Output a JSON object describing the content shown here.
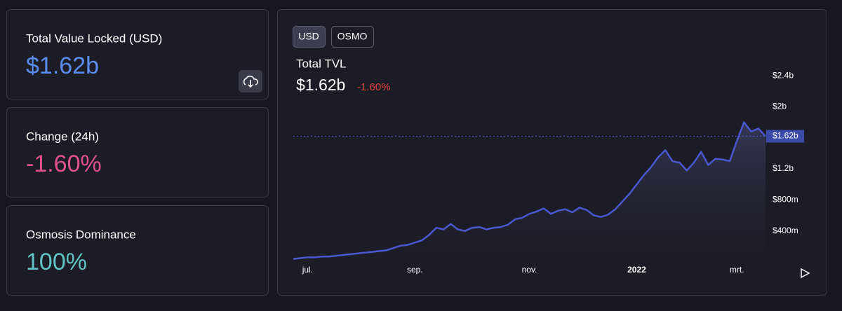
{
  "cards": [
    {
      "label": "Total Value Locked (USD)",
      "value": "$1.62b"
    },
    {
      "label": "Change (24h)",
      "value": "-1.60%"
    },
    {
      "label": "Osmosis Dominance",
      "value": "100%"
    }
  ],
  "tabs": [
    "USD",
    "OSMO"
  ],
  "chart_data": {
    "type": "area",
    "title": "Total TVL",
    "value": "$1.62b",
    "change": "-1.60%",
    "categories": [
      null,
      null,
      "jul.",
      null,
      null,
      null,
      null,
      null,
      null,
      null,
      null,
      null,
      null,
      null,
      null,
      null,
      null,
      "sep.",
      null,
      null,
      null,
      null,
      null,
      null,
      null,
      null,
      null,
      null,
      null,
      null,
      null,
      null,
      null,
      "nov.",
      null,
      null,
      null,
      null,
      null,
      null,
      null,
      null,
      null,
      null,
      null,
      null,
      null,
      null,
      "2022",
      null,
      null,
      null,
      null,
      null,
      null,
      null,
      null,
      null,
      null,
      null,
      null,
      null,
      "mrt.",
      null,
      null,
      null,
      null
    ],
    "values": [
      0.04,
      0.05,
      0.06,
      0.06,
      0.07,
      0.07,
      0.08,
      0.09,
      0.1,
      0.11,
      0.12,
      0.13,
      0.14,
      0.15,
      0.18,
      0.21,
      0.22,
      0.25,
      0.28,
      0.35,
      0.44,
      0.42,
      0.49,
      0.42,
      0.4,
      0.44,
      0.45,
      0.42,
      0.44,
      0.45,
      0.48,
      0.55,
      0.57,
      0.62,
      0.65,
      0.69,
      0.62,
      0.66,
      0.68,
      0.64,
      0.7,
      0.67,
      0.6,
      0.58,
      0.61,
      0.68,
      0.78,
      0.88,
      1.0,
      1.12,
      1.22,
      1.35,
      1.44,
      1.3,
      1.28,
      1.18,
      1.28,
      1.42,
      1.25,
      1.33,
      1.32,
      1.3,
      1.56,
      1.8,
      1.68,
      1.72,
      1.62
    ],
    "color": "#4a58d0",
    "ylim": [
      0,
      2.5
    ],
    "yticks": [
      {
        "value": 0.4,
        "label": "$400m"
      },
      {
        "value": 0.8,
        "label": "$800m"
      },
      {
        "value": 1.2,
        "label": "$1.2b"
      },
      {
        "value": 2,
        "label": "$2b"
      },
      {
        "value": 2.4,
        "label": "$2.4b"
      }
    ],
    "current": 1.62,
    "current_label": "$1.62b"
  }
}
